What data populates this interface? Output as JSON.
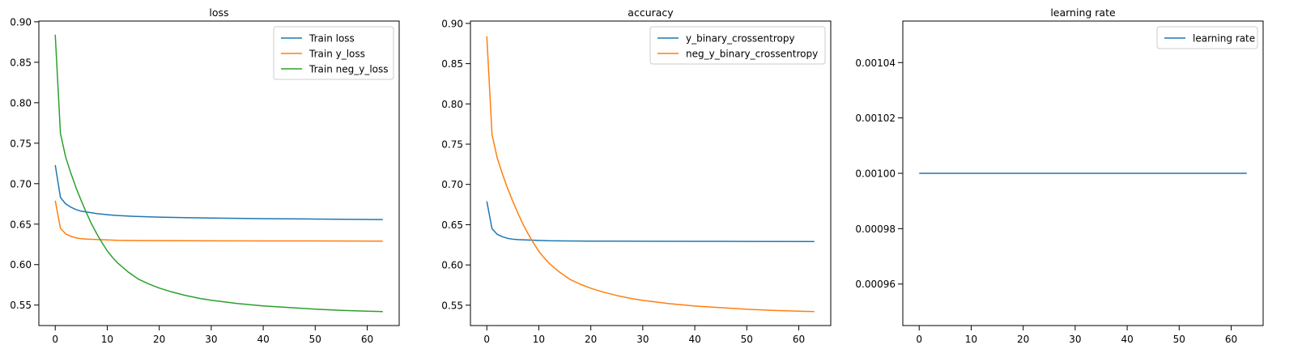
{
  "chart_data": [
    {
      "type": "line",
      "title": "loss",
      "xlabel": "",
      "ylabel": "",
      "xlim": [
        -3.15,
        66.15
      ],
      "ylim": [
        0.5247,
        0.9009
      ],
      "xticks": [
        0,
        10,
        20,
        30,
        40,
        50,
        60
      ],
      "yticks": [
        0.55,
        0.6,
        0.65,
        0.7,
        0.75,
        0.8,
        0.85,
        0.9
      ],
      "ytick_decimals": 2,
      "grid": false,
      "legend": "top-right",
      "series": [
        {
          "name": "Train loss",
          "color": "#1f77b4",
          "x": [
            0,
            1,
            2,
            3,
            4,
            5,
            6,
            8,
            10,
            12,
            15,
            20,
            25,
            30,
            40,
            50,
            63
          ],
          "y": [
            0.723,
            0.683,
            0.675,
            0.671,
            0.668,
            0.666,
            0.665,
            0.663,
            0.6617,
            0.6606,
            0.6596,
            0.6586,
            0.658,
            0.6575,
            0.6568,
            0.6563,
            0.6557
          ]
        },
        {
          "name": "Train y_loss",
          "color": "#ff7f0e",
          "x": [
            0,
            1,
            2,
            3,
            4,
            5,
            6,
            8,
            10,
            12,
            15,
            20,
            25,
            30,
            40,
            50,
            63
          ],
          "y": [
            0.679,
            0.645,
            0.638,
            0.635,
            0.633,
            0.632,
            0.6315,
            0.631,
            0.6305,
            0.63,
            0.6298,
            0.6296,
            0.6295,
            0.6294,
            0.6293,
            0.6292,
            0.629
          ]
        },
        {
          "name": "Train neg_y_loss",
          "color": "#2ca02c",
          "x": [
            0,
            1,
            2,
            3,
            4,
            5,
            6,
            7,
            8,
            9,
            10,
            11,
            12,
            14,
            16,
            18,
            20,
            22,
            25,
            28,
            30,
            35,
            40,
            45,
            50,
            55,
            60,
            63
          ],
          "y": [
            0.884,
            0.762,
            0.733,
            0.713,
            0.695,
            0.679,
            0.664,
            0.65,
            0.638,
            0.627,
            0.617,
            0.609,
            0.602,
            0.591,
            0.582,
            0.576,
            0.571,
            0.567,
            0.562,
            0.558,
            0.556,
            0.552,
            0.549,
            0.547,
            0.545,
            0.5435,
            0.5425,
            0.542
          ]
        }
      ]
    },
    {
      "type": "line",
      "title": "accuracy",
      "xlabel": "",
      "ylabel": "",
      "xlim": [
        -3.15,
        66.15
      ],
      "ylim": [
        0.5247,
        0.9029
      ],
      "xticks": [
        0,
        10,
        20,
        30,
        40,
        50,
        60
      ],
      "yticks": [
        0.55,
        0.6,
        0.65,
        0.7,
        0.75,
        0.8,
        0.85,
        0.9
      ],
      "ytick_decimals": 2,
      "grid": false,
      "legend": "top-right",
      "series": [
        {
          "name": "y_binary_crossentropy",
          "color": "#1f77b4",
          "x": [
            0,
            1,
            2,
            3,
            4,
            5,
            6,
            8,
            10,
            12,
            15,
            20,
            25,
            30,
            40,
            50,
            63
          ],
          "y": [
            0.679,
            0.645,
            0.638,
            0.635,
            0.633,
            0.632,
            0.6315,
            0.631,
            0.6305,
            0.63,
            0.6298,
            0.6296,
            0.6295,
            0.6294,
            0.6293,
            0.6292,
            0.629
          ]
        },
        {
          "name": "neg_y_binary_crossentropy",
          "color": "#ff7f0e",
          "x": [
            0,
            1,
            2,
            3,
            4,
            5,
            6,
            7,
            8,
            9,
            10,
            11,
            12,
            14,
            16,
            18,
            20,
            22,
            25,
            28,
            30,
            35,
            40,
            45,
            50,
            55,
            60,
            63
          ],
          "y": [
            0.884,
            0.762,
            0.733,
            0.713,
            0.695,
            0.679,
            0.664,
            0.65,
            0.638,
            0.627,
            0.617,
            0.609,
            0.602,
            0.591,
            0.582,
            0.576,
            0.571,
            0.567,
            0.562,
            0.558,
            0.556,
            0.552,
            0.549,
            0.547,
            0.545,
            0.5435,
            0.5425,
            0.542
          ]
        }
      ]
    },
    {
      "type": "line",
      "title": "learning rate",
      "xlabel": "",
      "ylabel": "",
      "xlim": [
        -3.15,
        66.15
      ],
      "ylim": [
        0.000945,
        0.001055
      ],
      "xticks": [
        0,
        10,
        20,
        30,
        40,
        50,
        60
      ],
      "yticks": [
        0.00096,
        0.00098,
        0.001,
        0.00102,
        0.00104
      ],
      "ytick_decimals": 5,
      "grid": false,
      "legend": "top-right",
      "series": [
        {
          "name": "learning rate",
          "color": "#1f77b4",
          "x": [
            0,
            63
          ],
          "y": [
            0.001,
            0.001
          ]
        }
      ]
    }
  ]
}
